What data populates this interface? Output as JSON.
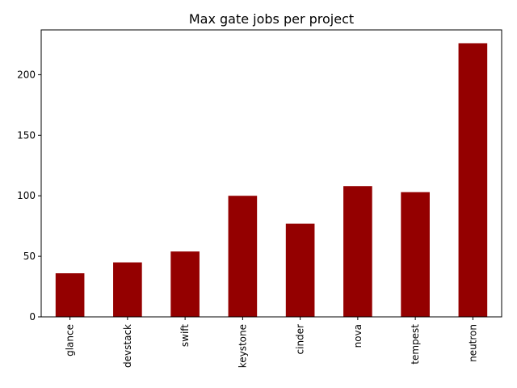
{
  "chart_data": {
    "type": "bar",
    "title": "Max gate jobs per project",
    "xlabel": "",
    "ylabel": "",
    "categories": [
      "glance",
      "devstack",
      "swift",
      "keystone",
      "cinder",
      "nova",
      "tempest",
      "neutron"
    ],
    "values": [
      36,
      45,
      54,
      100,
      77,
      108,
      103,
      226
    ],
    "ylim": [
      0,
      237
    ],
    "yticks": [
      0,
      50,
      100,
      150,
      200
    ],
    "bar_color": "#940000",
    "grid": false,
    "legend": "none"
  }
}
